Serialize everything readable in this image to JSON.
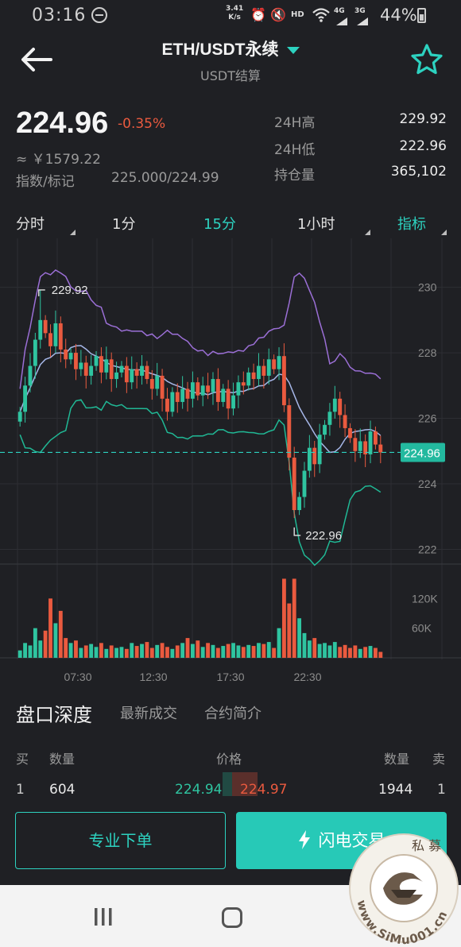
{
  "status_bar": {
    "time": "03:16",
    "speed_value": "3.41",
    "speed_unit": "K/s",
    "network_hd": "HD",
    "network_4g": "4G",
    "network_3g": "3G",
    "battery": "44%"
  },
  "header": {
    "title": "ETH/USDT永续",
    "subtitle": "USDT结算",
    "back_icon": "arrow-left-icon",
    "favorite_icon": "star-icon"
  },
  "ticker": {
    "last_price": "224.96",
    "change_pct": "-0.35%",
    "cny_approx": "≈ ￥1579.22",
    "index_mark_label": "指数/标记",
    "index_mark_value": "225.000/224.99",
    "high_label": "24H高",
    "high_value": "229.92",
    "low_label": "24H低",
    "low_value": "222.96",
    "oi_label": "持仓量",
    "oi_value": "365,102"
  },
  "timeframes": {
    "items": [
      {
        "label": "分时",
        "active": false
      },
      {
        "label": "1分",
        "active": false
      },
      {
        "label": "15分",
        "active": true
      },
      {
        "label": "1小时",
        "active": false
      },
      {
        "label": "指标",
        "active": true
      }
    ]
  },
  "colors": {
    "up": "#2fc4a0",
    "down": "#ea5a3f",
    "accent": "#2dd2c0",
    "upper_band": "#9b6fd6",
    "mid_band": "#a6b7e8",
    "lower_band": "#20b895"
  },
  "chart_data": {
    "type": "candlestick",
    "price_axis_ticks": [
      "230",
      "228",
      "226",
      "224",
      "222"
    ],
    "ylim": [
      221.6,
      231.3
    ],
    "current_price_tag": "224.96",
    "high_marker": "229.92",
    "low_marker": "222.96",
    "volume_axis_ticks": [
      "120K",
      "60K"
    ],
    "time_ticks": [
      "07:30",
      "12:30",
      "17:30",
      "22:30"
    ],
    "closes": [
      226.2,
      227.0,
      227.6,
      228.4,
      229.0,
      228.6,
      228.2,
      228.9,
      228.1,
      227.8,
      228.0,
      227.5,
      227.7,
      227.3,
      227.6,
      227.9,
      227.4,
      227.8,
      227.2,
      227.4,
      227.6,
      227.1,
      227.5,
      227.3,
      227.6,
      227.2,
      226.9,
      227.3,
      226.6,
      226.2,
      226.8,
      226.5,
      226.9,
      226.6,
      227.1,
      226.7,
      227.0,
      226.8,
      227.2,
      226.5,
      226.9,
      226.3,
      226.7,
      227.1,
      227.0,
      227.4,
      227.2,
      227.6,
      227.3,
      227.8,
      227.5,
      227.9,
      226.4,
      224.8,
      223.2,
      223.6,
      224.4,
      225.1,
      224.6,
      225.5,
      225.8,
      226.2,
      226.6,
      226.1,
      225.7,
      225.4,
      225.0,
      225.3,
      224.9,
      225.6,
      225.2,
      224.96
    ],
    "volumes": [
      15,
      30,
      25,
      60,
      35,
      55,
      120,
      70,
      95,
      40,
      30,
      35,
      20,
      25,
      28,
      22,
      30,
      18,
      25,
      20,
      22,
      18,
      30,
      24,
      28,
      32,
      20,
      26,
      30,
      22,
      18,
      25,
      30,
      40,
      28,
      35,
      22,
      30,
      26,
      20,
      24,
      28,
      30,
      25,
      22,
      26,
      24,
      30,
      28,
      32,
      20,
      60,
      160,
      110,
      160,
      80,
      50,
      35,
      40,
      28,
      30,
      25,
      32,
      22,
      26,
      20,
      25,
      18,
      22,
      24,
      20,
      12
    ]
  },
  "orderbook": {
    "title": "盘口深度",
    "tab_trades": "最新成交",
    "tab_contract": "合约简介",
    "head_buy": "买",
    "head_qty": "数量",
    "head_price": "价格",
    "head_qty_right": "数量",
    "head_sell": "卖",
    "row": {
      "buy_level": "1",
      "buy_qty": "604",
      "bid": "224.94",
      "ask": "224.97",
      "sell_qty": "1944",
      "sell_level": "1"
    }
  },
  "actions": {
    "pro_order": "专业下单",
    "flash_trade": "闪电交易",
    "flash_icon": "lightning-icon"
  },
  "watermark": {
    "text": "www.SiMu001.cn",
    "top_text": "私 募"
  }
}
